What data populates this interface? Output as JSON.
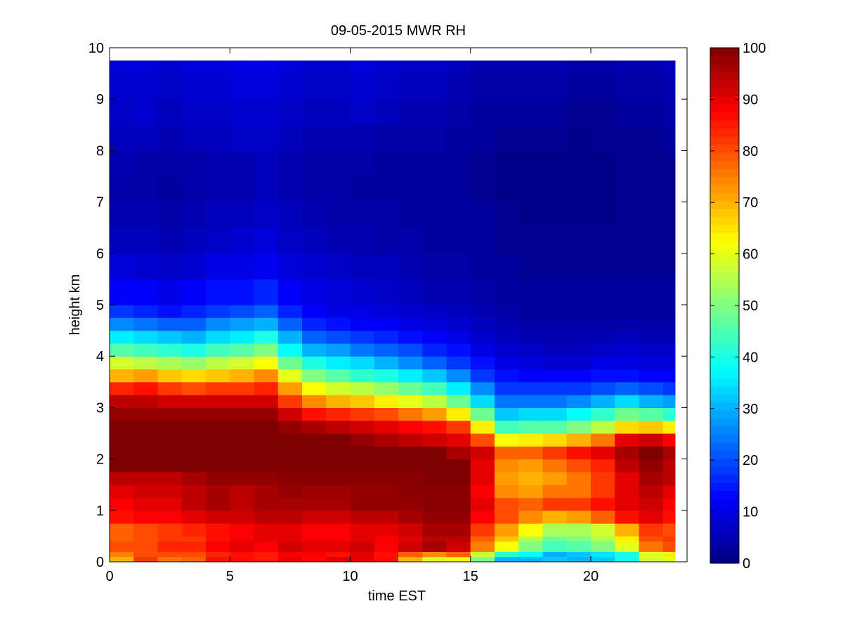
{
  "chart_data": {
    "type": "heatmap",
    "title": "09-05-2015 MWR RH",
    "xlabel": "time EST",
    "ylabel": "height km",
    "xlim": [
      0,
      24
    ],
    "ylim": [
      0,
      10
    ],
    "xticks": [
      0,
      5,
      10,
      15,
      20
    ],
    "yticks": [
      0,
      1,
      2,
      3,
      4,
      5,
      6,
      7,
      8,
      9,
      10
    ],
    "colorbar": {
      "min": 0,
      "max": 100,
      "ticks": [
        0,
        10,
        20,
        30,
        40,
        50,
        60,
        70,
        80,
        90,
        100
      ],
      "colormap": "jet"
    },
    "times": [
      0,
      1,
      2,
      3,
      4,
      5,
      6,
      7,
      8,
      9,
      10,
      11,
      12,
      13,
      14,
      15,
      16,
      17,
      18,
      19,
      20,
      21,
      22,
      23
    ],
    "heights": [
      0,
      0.1,
      0.2,
      0.3,
      0.4,
      0.5,
      0.75,
      1.0,
      1.25,
      1.5,
      1.75,
      2.0,
      2.25,
      2.5,
      2.75,
      3.0,
      3.25,
      3.5,
      3.75,
      4.0,
      4.25,
      4.5,
      4.75,
      5.0,
      5.5,
      6.0,
      6.5,
      7.0,
      7.5,
      8.0,
      8.5,
      9.0,
      9.5,
      9.75
    ],
    "rh": [
      [
        70,
        82,
        76,
        78,
        86,
        86,
        85,
        90,
        87,
        91,
        90,
        86,
        70,
        60,
        62,
        50,
        30,
        30,
        32,
        30,
        32,
        38,
        58,
        60
      ],
      [
        75,
        80,
        80,
        80,
        84,
        86,
        85,
        88,
        88,
        86,
        90,
        86,
        78,
        74,
        78,
        58,
        42,
        38,
        30,
        32,
        35,
        40,
        60,
        64
      ],
      [
        80,
        80,
        84,
        84,
        88,
        90,
        88,
        92,
        90,
        90,
        92,
        88,
        92,
        96,
        92,
        75,
        62,
        50,
        44,
        46,
        50,
        60,
        76,
        80
      ],
      [
        80,
        80,
        84,
        84,
        88,
        90,
        88,
        92,
        90,
        90,
        92,
        88,
        92,
        96,
        92,
        75,
        62,
        50,
        44,
        46,
        50,
        60,
        76,
        80
      ],
      [
        78,
        80,
        82,
        82,
        86,
        88,
        90,
        90,
        88,
        88,
        90,
        88,
        90,
        94,
        94,
        78,
        68,
        55,
        48,
        50,
        55,
        64,
        80,
        82
      ],
      [
        78,
        80,
        82,
        84,
        86,
        88,
        90,
        90,
        88,
        88,
        90,
        90,
        92,
        96,
        96,
        82,
        72,
        62,
        54,
        54,
        58,
        70,
        82,
        80
      ],
      [
        86,
        88,
        88,
        90,
        92,
        92,
        94,
        94,
        92,
        92,
        94,
        94,
        96,
        98,
        98,
        88,
        80,
        74,
        70,
        72,
        78,
        86,
        90,
        86
      ],
      [
        88,
        90,
        90,
        94,
        96,
        94,
        96,
        96,
        96,
        96,
        98,
        98,
        98,
        99,
        99,
        90,
        80,
        78,
        82,
        82,
        86,
        90,
        92,
        88
      ],
      [
        90,
        92,
        92,
        94,
        96,
        94,
        96,
        98,
        97,
        97,
        98,
        98,
        99,
        99,
        99,
        88,
        74,
        72,
        76,
        76,
        82,
        90,
        94,
        90
      ],
      [
        94,
        94,
        94,
        96,
        98,
        98,
        98,
        99,
        99,
        99,
        99,
        99,
        99,
        100,
        100,
        90,
        72,
        70,
        72,
        76,
        82,
        90,
        96,
        94
      ],
      [
        100,
        100,
        100,
        100,
        100,
        100,
        100,
        100,
        100,
        100,
        100,
        100,
        100,
        100,
        100,
        90,
        74,
        72,
        76,
        80,
        84,
        94,
        98,
        94
      ],
      [
        100,
        100,
        100,
        100,
        100,
        100,
        100,
        100,
        100,
        100,
        100,
        100,
        100,
        100,
        96,
        92,
        78,
        78,
        82,
        86,
        90,
        96,
        100,
        96
      ],
      [
        100,
        100,
        100,
        100,
        100,
        100,
        100,
        100,
        100,
        100,
        98,
        96,
        94,
        92,
        90,
        80,
        62,
        64,
        66,
        70,
        76,
        90,
        92,
        88
      ],
      [
        100,
        100,
        100,
        100,
        100,
        100,
        100,
        98,
        96,
        94,
        92,
        90,
        88,
        86,
        82,
        64,
        44,
        46,
        46,
        50,
        56,
        66,
        68,
        64
      ],
      [
        98,
        98,
        98,
        98,
        98,
        98,
        98,
        92,
        86,
        84,
        82,
        80,
        76,
        72,
        64,
        48,
        32,
        34,
        34,
        38,
        42,
        48,
        46,
        42
      ],
      [
        94,
        94,
        92,
        92,
        92,
        92,
        92,
        82,
        74,
        70,
        68,
        64,
        60,
        56,
        48,
        34,
        24,
        24,
        24,
        26,
        30,
        34,
        30,
        28
      ],
      [
        84,
        86,
        82,
        80,
        82,
        82,
        84,
        72,
        62,
        58,
        56,
        52,
        48,
        44,
        36,
        26,
        18,
        18,
        18,
        18,
        20,
        22,
        20,
        18
      ],
      [
        70,
        72,
        68,
        66,
        68,
        70,
        74,
        60,
        50,
        46,
        42,
        40,
        36,
        32,
        26,
        18,
        14,
        12,
        12,
        12,
        14,
        14,
        12,
        12
      ],
      [
        58,
        56,
        54,
        52,
        56,
        58,
        62,
        48,
        40,
        36,
        34,
        30,
        26,
        22,
        18,
        14,
        10,
        9,
        8,
        8,
        10,
        10,
        9,
        9
      ],
      [
        46,
        44,
        42,
        40,
        44,
        46,
        50,
        38,
        30,
        28,
        24,
        22,
        20,
        16,
        14,
        10,
        8,
        7,
        6,
        6,
        7,
        8,
        7,
        7
      ],
      [
        36,
        34,
        32,
        30,
        34,
        36,
        40,
        30,
        22,
        20,
        18,
        16,
        14,
        12,
        10,
        8,
        6,
        5,
        5,
        5,
        5,
        6,
        5,
        5
      ],
      [
        26,
        24,
        22,
        22,
        26,
        28,
        30,
        22,
        16,
        14,
        12,
        12,
        10,
        9,
        8,
        6,
        5,
        4,
        4,
        4,
        4,
        4,
        4,
        4
      ],
      [
        18,
        16,
        14,
        16,
        18,
        20,
        22,
        16,
        12,
        10,
        10,
        9,
        8,
        7,
        6,
        5,
        4,
        3,
        3,
        3,
        3,
        3,
        3,
        3
      ],
      [
        12,
        12,
        10,
        12,
        14,
        14,
        16,
        12,
        10,
        9,
        8,
        7,
        6,
        5,
        5,
        4,
        3,
        3,
        3,
        3,
        3,
        3,
        3,
        3
      ],
      [
        9,
        8,
        7,
        8,
        10,
        10,
        11,
        9,
        8,
        7,
        6,
        6,
        5,
        4,
        4,
        3,
        3,
        2,
        2,
        2,
        2,
        2,
        2,
        2
      ],
      [
        6,
        6,
        5,
        6,
        7,
        8,
        9,
        7,
        6,
        5,
        5,
        4,
        4,
        3,
        3,
        3,
        2,
        2,
        2,
        2,
        2,
        2,
        2,
        2
      ],
      [
        5,
        5,
        4,
        5,
        6,
        6,
        7,
        6,
        5,
        4,
        4,
        4,
        3,
        3,
        3,
        3,
        2,
        1,
        1,
        1,
        1,
        2,
        2,
        2
      ],
      [
        4,
        4,
        3,
        4,
        5,
        5,
        6,
        5,
        4,
        4,
        3,
        3,
        3,
        3,
        3,
        2,
        1,
        1,
        1,
        1,
        1,
        2,
        2,
        2
      ],
      [
        5,
        4,
        4,
        4,
        5,
        5,
        6,
        5,
        4,
        4,
        4,
        3,
        3,
        3,
        3,
        2,
        1,
        1,
        1,
        1,
        1,
        2,
        2,
        2
      ],
      [
        6,
        6,
        5,
        6,
        6,
        7,
        7,
        6,
        5,
        5,
        5,
        4,
        4,
        4,
        3,
        3,
        2,
        2,
        2,
        1,
        2,
        2,
        2,
        3
      ],
      [
        7,
        8,
        6,
        7,
        7,
        8,
        8,
        7,
        6,
        6,
        7,
        6,
        5,
        5,
        4,
        3,
        3,
        3,
        3,
        2,
        2,
        3,
        3,
        4
      ],
      [
        8,
        8,
        7,
        8,
        8,
        9,
        9,
        8,
        7,
        7,
        8,
        7,
        6,
        6,
        5,
        4,
        4,
        4,
        4,
        3,
        3,
        4,
        4,
        5
      ],
      [
        9,
        9,
        8,
        9,
        9,
        10,
        10,
        9,
        8,
        8,
        9,
        8,
        7,
        7,
        6,
        5,
        5,
        5,
        5,
        4,
        4,
        5,
        5,
        6
      ],
      [
        10,
        10,
        9,
        10,
        10,
        11,
        11,
        10,
        9,
        9,
        10,
        9,
        8,
        8,
        7,
        6,
        6,
        6,
        6,
        5,
        5,
        6,
        6,
        7
      ]
    ]
  }
}
